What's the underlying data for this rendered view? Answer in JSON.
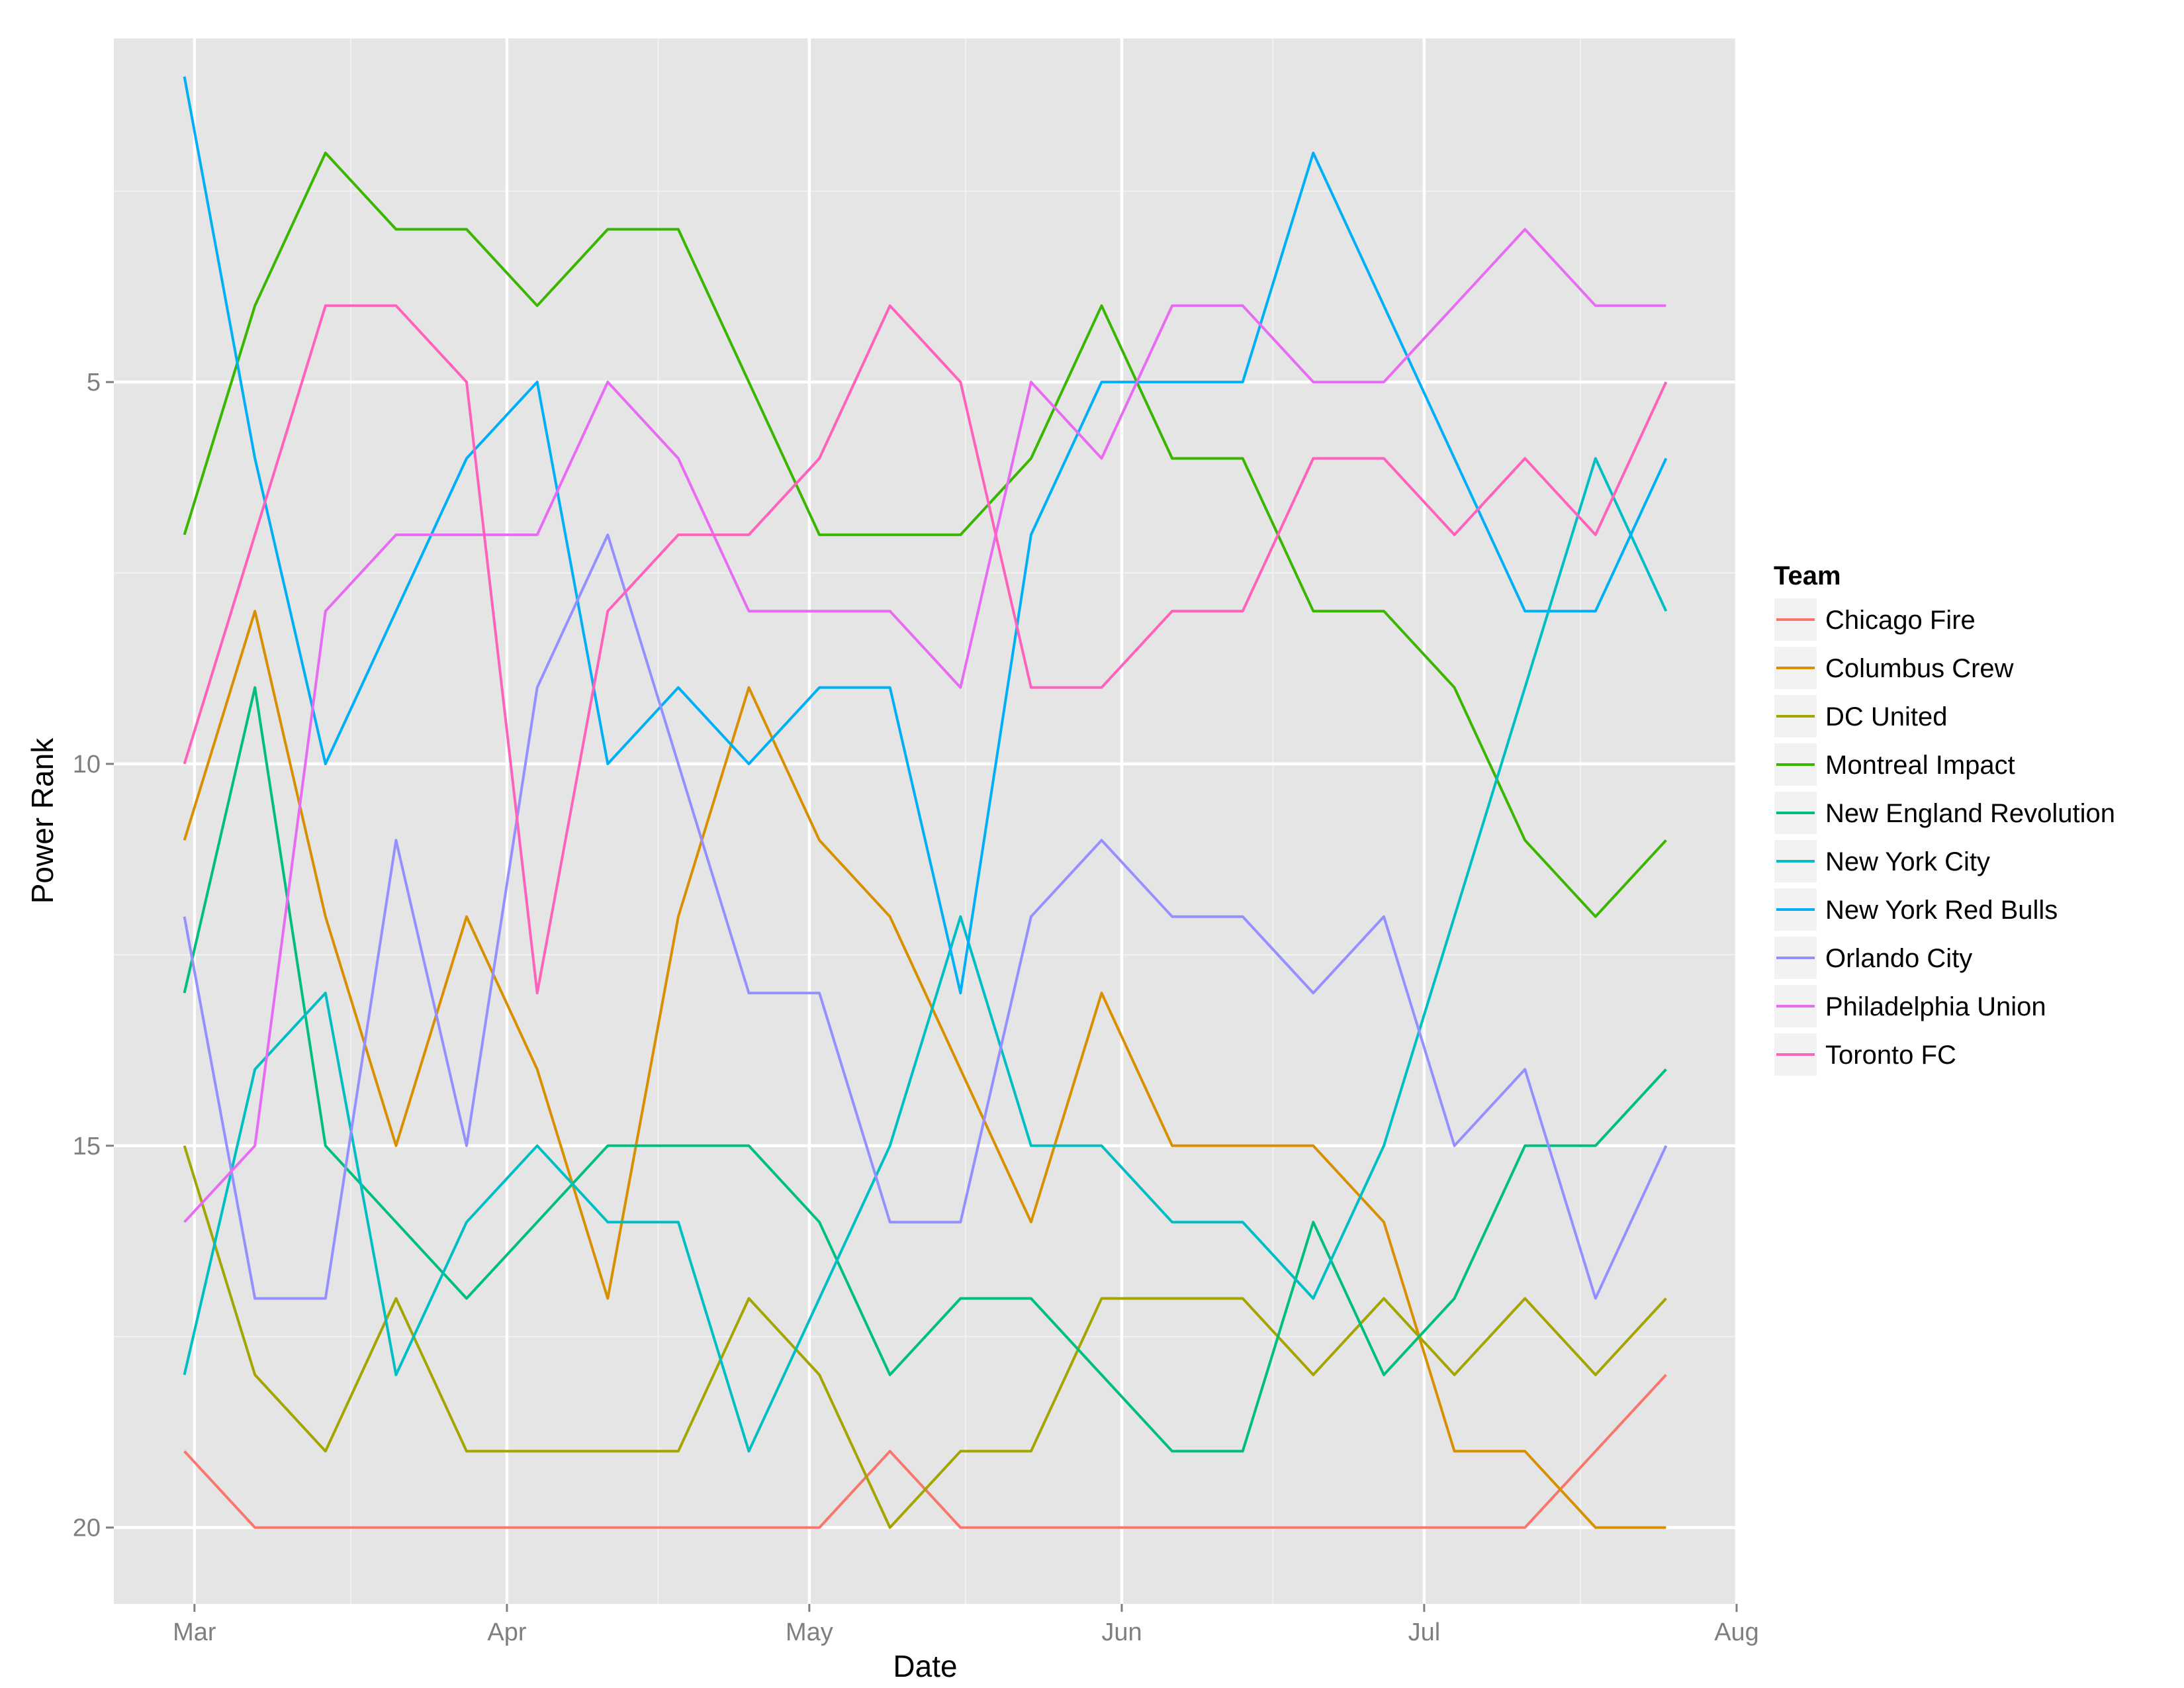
{
  "chart_data": {
    "type": "line",
    "title": "",
    "xlabel": "Date",
    "ylabel": "Power Rank",
    "y_reversed": true,
    "ylim": [
      21,
      0.5
    ],
    "xlim": [
      "2015-02-21",
      "2015-08-01"
    ],
    "x_ticks": [
      {
        "date": "2015-03-01",
        "label": "Mar"
      },
      {
        "date": "2015-04-01",
        "label": "Apr"
      },
      {
        "date": "2015-05-01",
        "label": "May"
      },
      {
        "date": "2015-06-01",
        "label": "Jun"
      },
      {
        "date": "2015-07-01",
        "label": "Jul"
      },
      {
        "date": "2015-08-01",
        "label": "Aug"
      }
    ],
    "y_ticks": [
      {
        "value": 5,
        "label": "5"
      },
      {
        "value": 10,
        "label": "10"
      },
      {
        "value": 15,
        "label": "15"
      },
      {
        "value": 20,
        "label": "20"
      }
    ],
    "grid": true,
    "legend": {
      "title": "Team",
      "position": "right"
    },
    "x": [
      "2015-02-28",
      "2015-03-07",
      "2015-03-14",
      "2015-03-21",
      "2015-03-28",
      "2015-04-04",
      "2015-04-11",
      "2015-04-18",
      "2015-04-25",
      "2015-05-02",
      "2015-05-09",
      "2015-05-16",
      "2015-05-23",
      "2015-05-30",
      "2015-06-06",
      "2015-06-13",
      "2015-06-20",
      "2015-06-27",
      "2015-07-04",
      "2015-07-11",
      "2015-07-18",
      "2015-07-25"
    ],
    "series": [
      {
        "name": "Chicago Fire",
        "color": "#F8766D",
        "values": [
          19,
          20,
          20,
          20,
          20,
          20,
          20,
          20,
          20,
          20,
          19,
          20,
          20,
          20,
          20,
          20,
          20,
          20,
          20,
          20,
          19,
          18
        ]
      },
      {
        "name": "Columbus Crew",
        "color": "#D89000",
        "values": [
          11,
          8,
          12,
          15,
          12,
          14,
          17,
          12,
          9,
          11,
          12,
          14,
          16,
          13,
          15,
          15,
          15,
          16,
          19,
          19,
          20,
          20
        ]
      },
      {
        "name": "DC United",
        "color": "#A3A500",
        "values": [
          15,
          18,
          19,
          17,
          19,
          19,
          19,
          19,
          17,
          18,
          20,
          19,
          19,
          17,
          17,
          17,
          18,
          17,
          18,
          17,
          18,
          17
        ]
      },
      {
        "name": "Montreal Impact",
        "color": "#39B600",
        "values": [
          7,
          4,
          2,
          3,
          3,
          4,
          3,
          3,
          5,
          7,
          7,
          7,
          6,
          4,
          6,
          6,
          8,
          8,
          9,
          11,
          12,
          11
        ]
      },
      {
        "name": "New England Revolution",
        "color": "#00BF7D",
        "values": [
          13,
          9,
          15,
          16,
          17,
          16,
          15,
          15,
          15,
          16,
          18,
          17,
          17,
          18,
          19,
          19,
          16,
          18,
          17,
          15,
          15,
          14
        ]
      },
      {
        "name": "New York City",
        "color": "#00BFC4",
        "values": [
          18,
          14,
          13,
          18,
          16,
          15,
          16,
          16,
          19,
          17,
          15,
          12,
          15,
          15,
          16,
          16,
          17,
          15,
          12,
          9,
          6,
          8
        ]
      },
      {
        "name": "New York Red Bulls",
        "color": "#00B0F6",
        "values": [
          1,
          6,
          10,
          8,
          6,
          5,
          10,
          9,
          10,
          9,
          9,
          13,
          7,
          5,
          5,
          5,
          2,
          4,
          6,
          8,
          8,
          6
        ]
      },
      {
        "name": "Orlando City",
        "color": "#9590FF",
        "values": [
          12,
          17,
          17,
          11,
          15,
          9,
          7,
          10,
          13,
          13,
          16,
          16,
          12,
          11,
          12,
          12,
          13,
          12,
          15,
          14,
          17,
          15
        ]
      },
      {
        "name": "Philadelphia Union",
        "color": "#E76BF3",
        "values": [
          16,
          15,
          8,
          7,
          7,
          7,
          5,
          6,
          8,
          8,
          8,
          9,
          5,
          6,
          4,
          4,
          5,
          5,
          4,
          3,
          4,
          4
        ]
      },
      {
        "name": "Toronto FC",
        "color": "#FF62BC",
        "values": [
          10,
          7,
          4,
          4,
          5,
          13,
          8,
          7,
          7,
          6,
          4,
          5,
          9,
          9,
          8,
          8,
          6,
          6,
          7,
          6,
          7,
          5
        ]
      }
    ]
  }
}
